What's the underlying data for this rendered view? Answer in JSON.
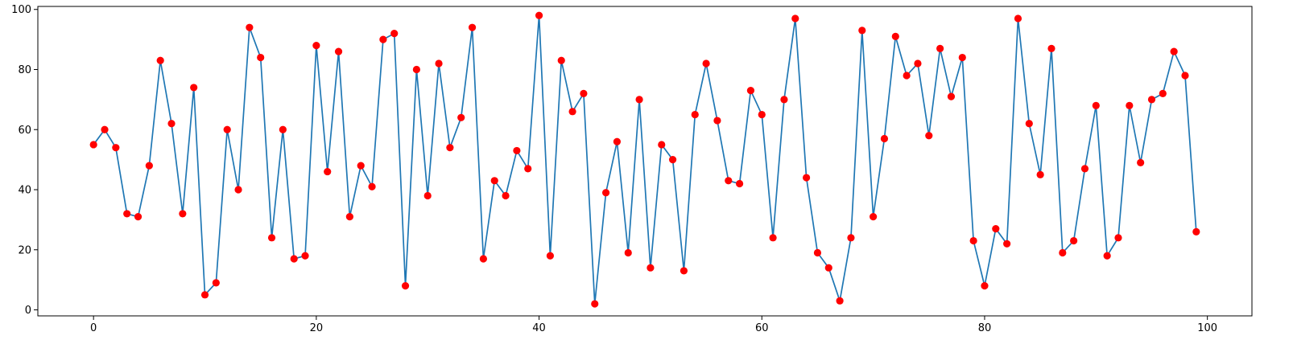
{
  "chart_data": {
    "type": "line",
    "title": "",
    "xlabel": "",
    "ylabel": "",
    "xlim": [
      -5,
      104
    ],
    "ylim": [
      -2,
      101
    ],
    "xticks": [
      0,
      20,
      40,
      60,
      80,
      100
    ],
    "yticks": [
      0,
      20,
      40,
      60,
      80,
      100
    ],
    "grid": false,
    "line_color": "#1f77b4",
    "marker_color": "#ff0000",
    "series": [
      {
        "x": [
          0,
          1,
          2,
          3,
          4,
          5,
          6,
          7,
          8,
          9,
          10,
          11,
          12,
          13,
          14,
          15,
          16,
          17,
          18,
          19,
          20,
          21,
          22,
          23,
          24,
          25,
          26,
          27,
          28,
          29,
          30,
          31,
          32,
          33,
          34,
          35,
          36,
          37,
          38,
          39,
          40,
          41,
          42,
          43,
          44,
          45,
          46,
          47,
          48,
          49,
          50,
          51,
          52,
          53,
          54,
          55,
          56,
          57,
          58,
          59,
          60,
          61,
          62,
          63,
          64,
          65,
          66,
          67,
          68,
          69,
          70,
          71,
          72,
          73,
          74,
          75,
          76,
          77,
          78,
          79,
          80,
          81,
          82,
          83,
          84,
          85,
          86,
          87,
          88,
          89,
          90,
          91,
          92,
          93,
          94,
          95,
          96,
          97,
          98,
          99
        ],
        "y": [
          55,
          60,
          54,
          32,
          31,
          48,
          83,
          62,
          32,
          74,
          5,
          9,
          60,
          40,
          94,
          84,
          24,
          60,
          17,
          18,
          88,
          46,
          86,
          31,
          48,
          41,
          90,
          92,
          8,
          80,
          38,
          82,
          54,
          64,
          94,
          17,
          43,
          38,
          53,
          47,
          98,
          18,
          83,
          66,
          72,
          2,
          39,
          56,
          19,
          70,
          14,
          55,
          50,
          13,
          65,
          82,
          63,
          43,
          42,
          73,
          65,
          24,
          70,
          97,
          44,
          19,
          14,
          3,
          24,
          93,
          31,
          57,
          91,
          78,
          82,
          58,
          87,
          71,
          84,
          23,
          8,
          27,
          22,
          97,
          62,
          45,
          87,
          19,
          23,
          47,
          68,
          18,
          24,
          68,
          49,
          70,
          72,
          86,
          78,
          26
        ]
      }
    ]
  }
}
